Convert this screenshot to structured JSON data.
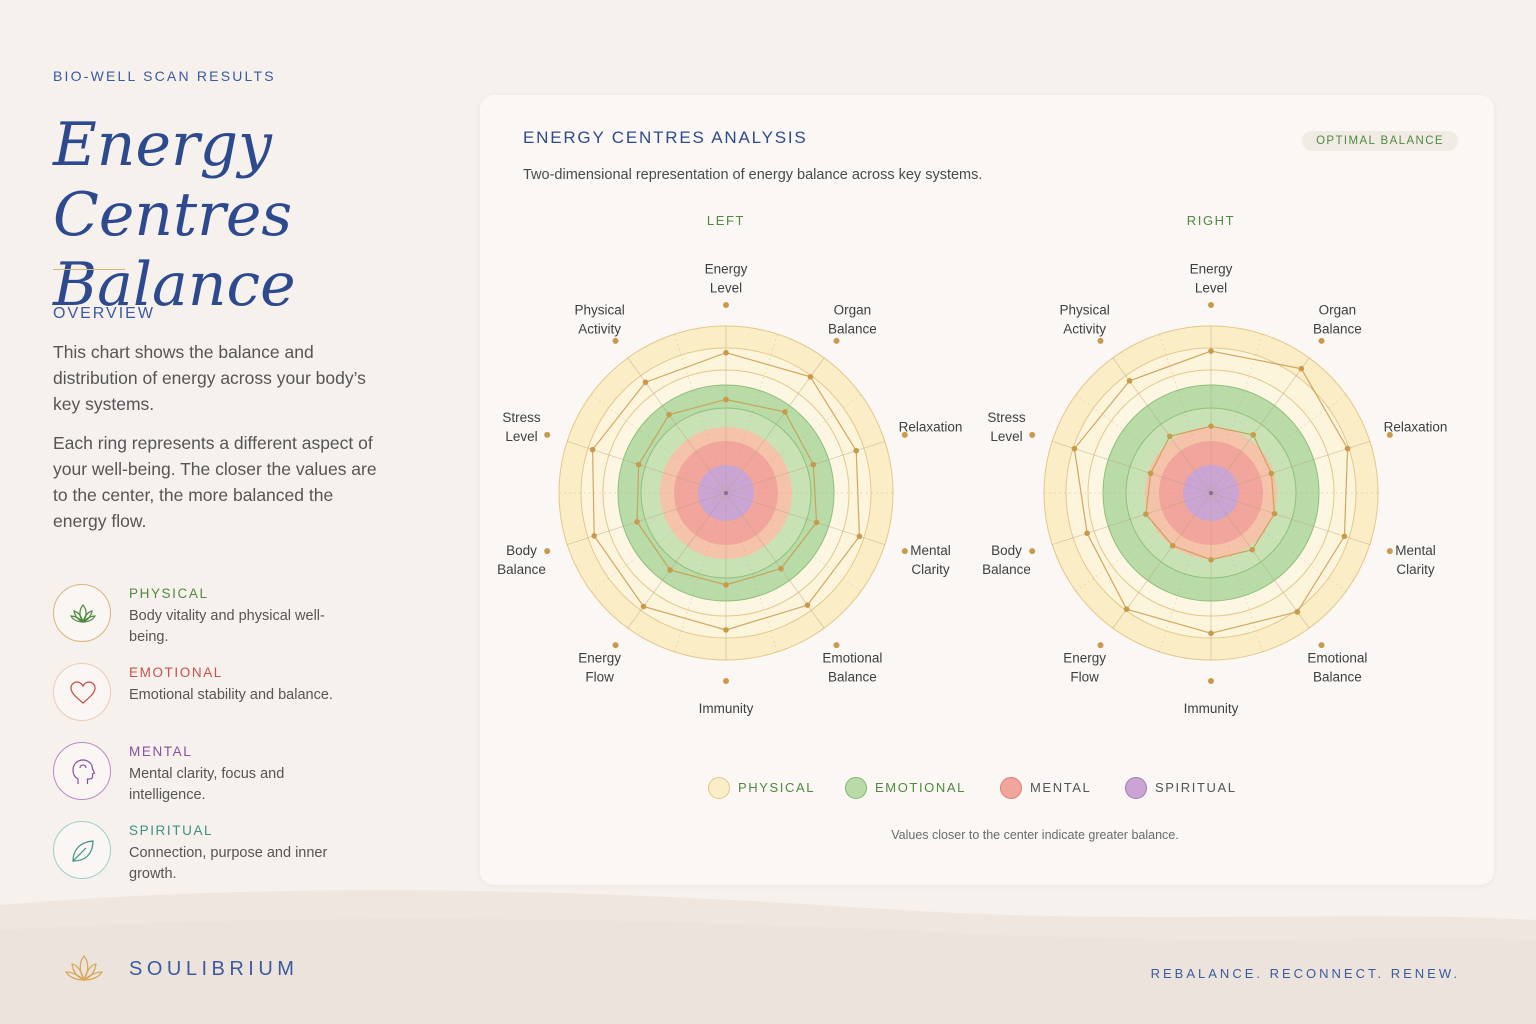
{
  "header": {
    "eyebrow": "BIO-WELL SCAN RESULTS",
    "title_line1": "Energy Centres",
    "title_line2": "Balance"
  },
  "overview": {
    "heading": "OVERVIEW",
    "paragraph1": "This chart shows the balance and distribution of energy across your body’s key systems.",
    "paragraph2": "Each ring represents a different aspect of your well-being. The closer the values are to the center, the more balanced the energy flow."
  },
  "categories": [
    {
      "name": "PHYSICAL",
      "description": "Body vitality and physical well-being.",
      "color": "#4f8a3f",
      "icon": "lotus-icon"
    },
    {
      "name": "EMOTIONAL",
      "description": "Emotional stability and balance.",
      "color": "#c9514b",
      "icon": "heart-icon"
    },
    {
      "name": "MENTAL",
      "description": "Mental clarity, focus and intelligence.",
      "color": "#8a4f9e",
      "icon": "head-profile-icon"
    },
    {
      "name": "SPIRITUAL",
      "description": "Connection, purpose and inner growth.",
      "color": "#3f8f82",
      "icon": "leaf-icon"
    }
  ],
  "panel": {
    "title": "ENERGY CENTRES ANALYSIS",
    "badge": "OPTIMAL BALANCE",
    "subtitle": "Two-dimensional representation of energy balance across key systems.",
    "footnote": "Values closer to the center indicate greater balance."
  },
  "legend": [
    {
      "label": "PHYSICAL",
      "fill": "#fbeec7",
      "stroke": "#e3c88a",
      "text": "#4f8a3f"
    },
    {
      "label": "EMOTIONAL",
      "fill": "#b9dba8",
      "stroke": "#7fb36a",
      "text": "#4f8a3f"
    },
    {
      "label": "MENTAL",
      "fill": "#f1a59c",
      "stroke": "#de7e74",
      "text": "#555555"
    },
    {
      "label": "SPIRITUAL",
      "fill": "#c9a4d4",
      "stroke": "#a07ab0",
      "text": "#555555"
    }
  ],
  "chart_data": [
    {
      "type": "radar",
      "title": "LEFT",
      "axes": [
        [
          "Energy",
          "Level"
        ],
        [
          "Organ",
          "Balance"
        ],
        [
          "Relaxation"
        ],
        [
          "Mental",
          "Clarity"
        ],
        [
          "Emotional",
          "Balance"
        ],
        [
          "Immunity"
        ],
        [
          "Energy",
          "Flow"
        ],
        [
          "Body",
          "Balance"
        ],
        [
          "Stress",
          "Level"
        ],
        [
          "Physical",
          "Activity"
        ]
      ],
      "series": [
        {
          "values": [
            0.84,
            0.86,
            0.82,
            0.84,
            0.83,
            0.82,
            0.84,
            0.83,
            0.84,
            0.82
          ]
        },
        {
          "values": [
            0.56,
            0.6,
            0.55,
            0.57,
            0.56,
            0.55,
            0.57,
            0.56,
            0.55,
            0.58
          ]
        }
      ]
    },
    {
      "type": "radar",
      "title": "RIGHT",
      "axes": [
        [
          "Energy",
          "Level"
        ],
        [
          "Organ",
          "Balance"
        ],
        [
          "Relaxation"
        ],
        [
          "Mental",
          "Clarity"
        ],
        [
          "Emotional",
          "Balance"
        ],
        [
          "Immunity"
        ],
        [
          "Energy",
          "Flow"
        ],
        [
          "Body",
          "Balance"
        ],
        [
          "Stress",
          "Level"
        ],
        [
          "Physical",
          "Activity"
        ]
      ],
      "series": [
        {
          "values": [
            0.85,
            0.92,
            0.86,
            0.84,
            0.88,
            0.84,
            0.86,
            0.78,
            0.86,
            0.83
          ]
        },
        {
          "values": [
            0.4,
            0.43,
            0.38,
            0.4,
            0.42,
            0.4,
            0.39,
            0.41,
            0.38,
            0.42
          ]
        }
      ]
    }
  ],
  "footer": {
    "brand": "SOULIBRIUM",
    "tagline": "REBALANCE. RECONNECT. RENEW."
  }
}
